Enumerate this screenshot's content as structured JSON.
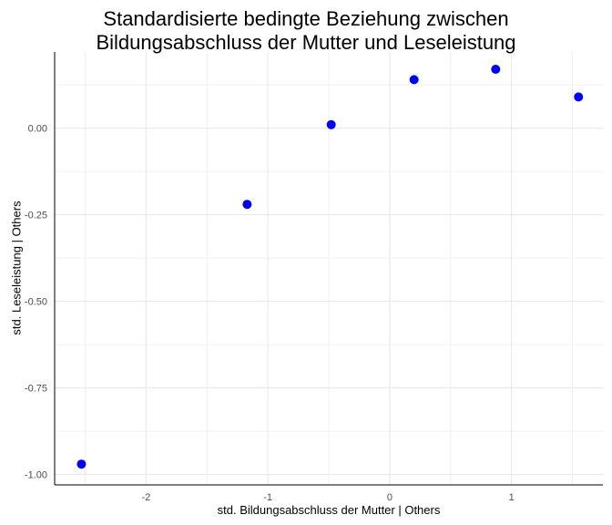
{
  "chart_data": {
    "type": "scatter",
    "title_lines": [
      "Standardisierte bedingte Beziehung zwischen",
      "Bildungsabschluss der Mutter und Leseleistung"
    ],
    "xlabel": "std. Bildungsabschluss der Mutter | Others",
    "ylabel": "std. Leseleistung | Others",
    "xlim": [
      -2.75,
      1.75
    ],
    "ylim": [
      -1.03,
      0.22
    ],
    "x_ticks": [
      -2,
      -1,
      0,
      1
    ],
    "x_tick_labels": [
      "-2",
      "-1",
      "0",
      "1"
    ],
    "y_ticks": [
      -1.0,
      -0.75,
      -0.5,
      -0.25,
      0.0
    ],
    "y_tick_labels": [
      "-1.00",
      "-0.75",
      "-0.50",
      "-0.25",
      "0.00"
    ],
    "grid": true,
    "point_color": "#0000ff",
    "points": [
      {
        "x": -2.53,
        "y": -0.97
      },
      {
        "x": -1.17,
        "y": -0.22
      },
      {
        "x": -0.48,
        "y": 0.01
      },
      {
        "x": 0.2,
        "y": 0.14
      },
      {
        "x": 0.87,
        "y": 0.17
      },
      {
        "x": 1.55,
        "y": 0.09
      }
    ]
  }
}
